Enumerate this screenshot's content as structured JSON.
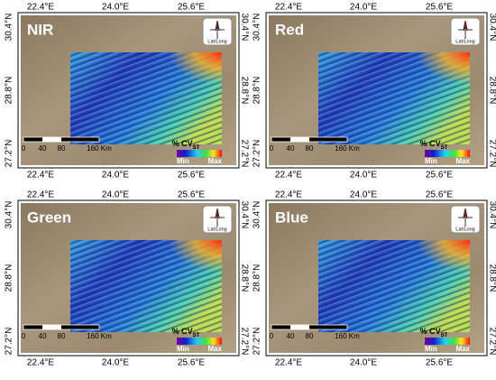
{
  "panels": [
    {
      "title": "NIR"
    },
    {
      "title": "Red"
    },
    {
      "title": "Green"
    },
    {
      "title": "Blue"
    }
  ],
  "lon_labels": [
    "22.4°E",
    "24.0°E",
    "25.6°E"
  ],
  "lat_labels": [
    "30.4°N",
    "28.8°N",
    "27.2°N"
  ],
  "scale_labels": [
    "0",
    "40",
    "80",
    "160 Km"
  ],
  "legend": {
    "title": "% CV",
    "subscript": "ST",
    "min": "Min",
    "max": "Max"
  },
  "compass_label": "Lat/Long"
}
